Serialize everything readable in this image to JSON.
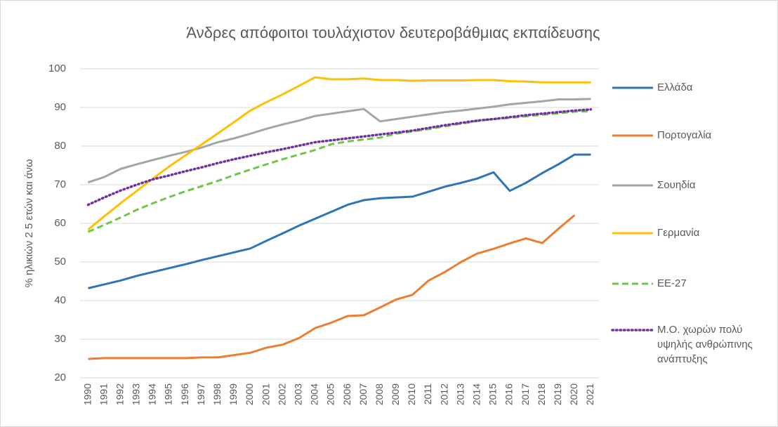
{
  "chart_data": {
    "type": "line",
    "title": "Άνδρες απόφοιτοι τουλάχιστον δευτεροβάθμιας εκπαίδευσης",
    "y_label": "% ηλικιών 2 5 ετών και άνω",
    "categories": [
      "1990",
      "1991",
      "1992",
      "1993",
      "1994",
      "1995",
      "1996",
      "1997",
      "1998",
      "1999",
      "2000",
      "2001",
      "2002",
      "2003",
      "2004",
      "2005",
      "2006",
      "2007",
      "2008",
      "2009",
      "2010",
      "2011",
      "2012",
      "2013",
      "2014",
      "2015",
      "2016",
      "2017",
      "2018",
      "2019",
      "2020",
      "2021"
    ],
    "ylim": [
      20,
      100
    ],
    "yticks": [
      20,
      30,
      40,
      50,
      60,
      70,
      80,
      90,
      100
    ],
    "grid": true,
    "legend": "right",
    "series": [
      {
        "name": "Ελλάδα",
        "color": "#2e75b6",
        "dash": "solid",
        "values": [
          43.2,
          44.2,
          45.2,
          46.4,
          47.4,
          48.4,
          49.4,
          50.5,
          51.5,
          52.5,
          53.5,
          55.5,
          57.4,
          59.4,
          61.2,
          63.0,
          64.8,
          66.0,
          66.5,
          66.7,
          66.9,
          68.2,
          69.5,
          70.5,
          71.6,
          73.2,
          68.4,
          70.5,
          73.0,
          75.3,
          77.8,
          77.8
        ]
      },
      {
        "name": "Πορτογαλία",
        "color": "#ed7d31",
        "dash": "solid",
        "values": [
          24.9,
          25.1,
          25.1,
          25.1,
          25.1,
          25.1,
          25.1,
          25.3,
          25.3,
          25.9,
          26.5,
          27.8,
          28.6,
          30.3,
          32.9,
          34.3,
          36.0,
          36.2,
          38.2,
          40.3,
          41.5,
          45.2,
          47.4,
          50.0,
          52.2,
          53.4,
          54.8,
          56.1,
          54.9,
          58.6,
          62.1,
          null
        ]
      },
      {
        "name": "Σουηδία",
        "color": "#a5a5a5",
        "dash": "solid",
        "values": [
          70.6,
          72.0,
          74.1,
          75.3,
          76.4,
          77.5,
          78.5,
          79.6,
          81.0,
          82.0,
          83.2,
          84.5,
          85.6,
          86.6,
          87.8,
          88.4,
          89.0,
          89.6,
          86.4,
          87.0,
          87.6,
          88.2,
          88.8,
          89.2,
          89.7,
          90.2,
          90.8,
          91.2,
          91.6,
          92.1,
          92.1,
          92.2
        ]
      },
      {
        "name": "Γερμανία",
        "color": "#ffc000",
        "dash": "solid",
        "values": [
          58.4,
          61.8,
          65.2,
          68.4,
          71.6,
          74.7,
          77.6,
          80.4,
          83.3,
          86.2,
          89.2,
          91.4,
          93.4,
          95.6,
          97.8,
          97.3,
          97.3,
          97.5,
          97.1,
          97.1,
          96.9,
          97.0,
          97.0,
          97.0,
          97.1,
          97.1,
          96.8,
          96.7,
          96.5,
          96.5,
          96.5,
          96.5
        ]
      },
      {
        "name": "ΕΕ-27",
        "color": "#70c64a",
        "dash": "dashed",
        "values": [
          57.8,
          59.6,
          61.5,
          63.5,
          65.2,
          66.8,
          68.3,
          69.6,
          71.0,
          72.5,
          73.9,
          75.3,
          76.6,
          77.8,
          79.0,
          80.5,
          81.2,
          81.7,
          82.2,
          83.2,
          83.8,
          84.4,
          85.1,
          85.8,
          86.5,
          87.0,
          87.3,
          87.7,
          88.1,
          88.5,
          88.9,
          89.0
        ]
      },
      {
        "name": "Μ.Ο. χωρών πολύ υψηλής ανθρώπινης ανάπτυξης",
        "color": "#7030a0",
        "dash": "dotted",
        "values": [
          64.8,
          66.7,
          68.5,
          70.0,
          71.4,
          72.4,
          73.5,
          74.5,
          75.6,
          76.6,
          77.5,
          78.4,
          79.2,
          80.1,
          81.0,
          81.5,
          82.0,
          82.5,
          83.0,
          83.5,
          84.0,
          84.7,
          85.4,
          86.0,
          86.6,
          87.0,
          87.5,
          88.0,
          88.4,
          88.8,
          89.2,
          89.5
        ]
      }
    ]
  }
}
